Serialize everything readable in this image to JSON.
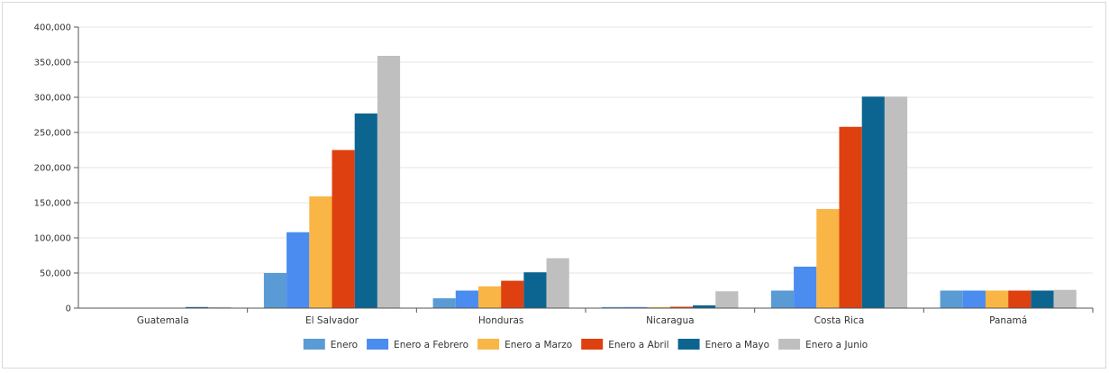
{
  "chart_data": {
    "type": "bar",
    "title": "",
    "xlabel": "",
    "ylabel": "",
    "categories": [
      "Guatemala",
      "El Salvador",
      "Honduras",
      "Nicaragua",
      "Costa Rica",
      "Panamá"
    ],
    "ylim": [
      0,
      400000
    ],
    "yticks": [
      0,
      50000,
      100000,
      150000,
      200000,
      250000,
      300000,
      350000,
      400000
    ],
    "ytick_labels": [
      "0",
      "50,000",
      "100,000",
      "150,000",
      "200,000",
      "250,000",
      "300,000",
      "350,000",
      "400,000"
    ],
    "grid": true,
    "legend_position": "bottom",
    "series": [
      {
        "name": "Enero",
        "color": "#5b9bd5",
        "values": [
          0,
          50000,
          14000,
          1000,
          25000,
          25000
        ]
      },
      {
        "name": "Enero a Febrero",
        "color": "#4a8cf0",
        "values": [
          0,
          108000,
          25000,
          1000,
          59000,
          25000
        ]
      },
      {
        "name": "Enero a Marzo",
        "color": "#f9b545",
        "values": [
          0,
          159000,
          31000,
          1500,
          141000,
          25000
        ]
      },
      {
        "name": "Enero a Abril",
        "color": "#df4010",
        "values": [
          0,
          225000,
          39000,
          2000,
          258000,
          25000
        ]
      },
      {
        "name": "Enero a Mayo",
        "color": "#0c6590",
        "values": [
          1500,
          277000,
          51000,
          4000,
          301000,
          25000
        ]
      },
      {
        "name": "Enero a Junio",
        "color": "#bfbfbf",
        "values": [
          1500,
          359000,
          71000,
          24000,
          301000,
          26000
        ]
      }
    ]
  }
}
